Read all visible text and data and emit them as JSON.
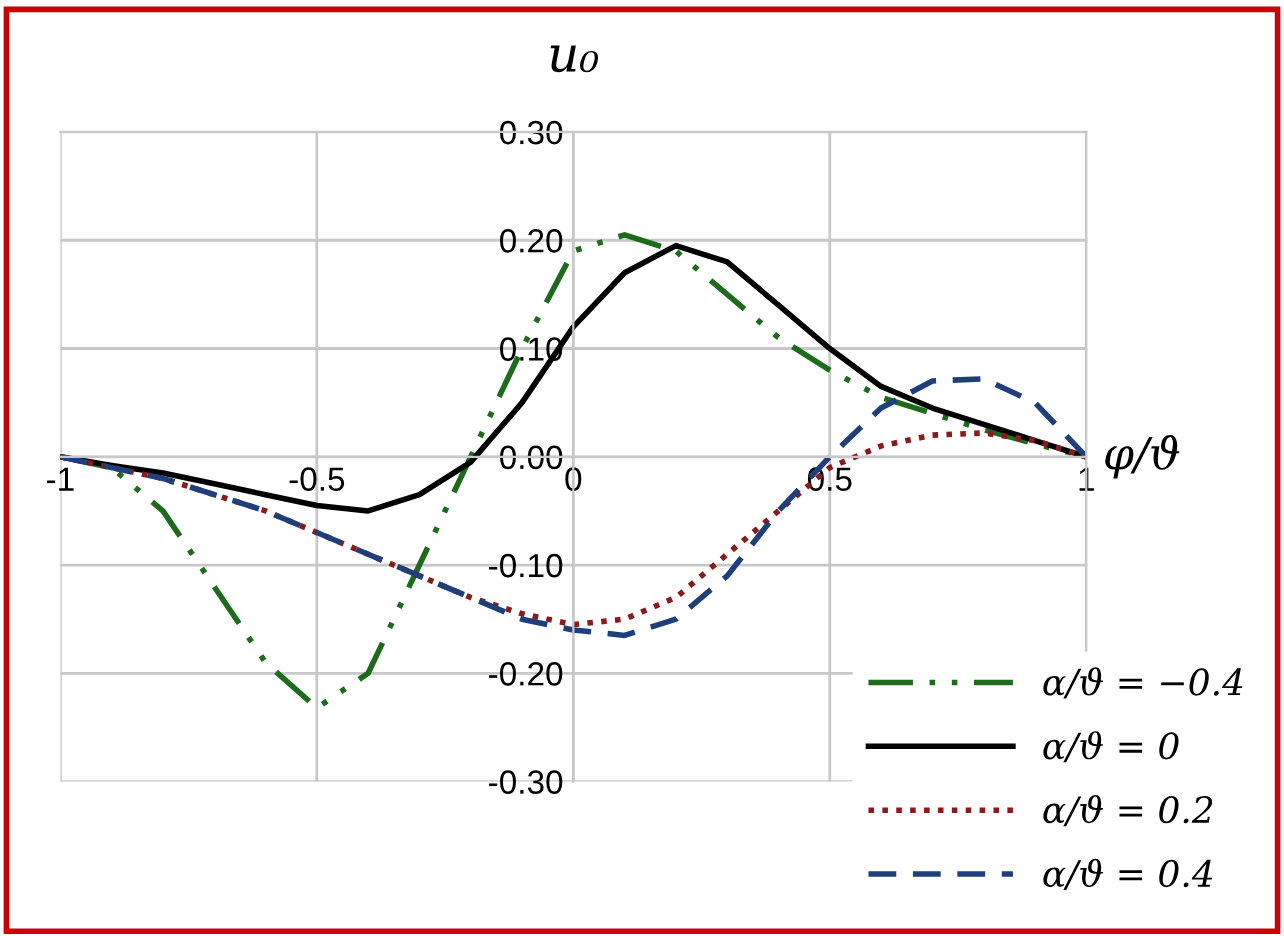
{
  "chart_data": {
    "type": "line",
    "xlabel": "φ/ϑ",
    "ylabel": "u₀",
    "x": [
      -1,
      -0.9,
      -0.8,
      -0.7,
      -0.6,
      -0.5,
      -0.4,
      -0.3,
      -0.2,
      -0.1,
      0,
      0.1,
      0.2,
      0.3,
      0.4,
      0.5,
      0.6,
      0.7,
      0.8,
      0.9,
      1
    ],
    "series": [
      {
        "name": "α/ϑ = −0.4",
        "color": "#1e6b1e",
        "line_style": "dashdot",
        "values": [
          0,
          -0.01,
          -0.05,
          -0.12,
          -0.19,
          -0.232,
          -0.2,
          -0.1,
          0.0,
          0.1,
          0.19,
          0.205,
          0.19,
          0.15,
          0.11,
          0.08,
          0.055,
          0.04,
          0.025,
          0.012,
          0
        ]
      },
      {
        "name": "α/ϑ = 0",
        "color": "#000000",
        "line_style": "solid",
        "values": [
          0,
          -0.008,
          -0.015,
          -0.025,
          -0.035,
          -0.045,
          -0.05,
          -0.035,
          -0.005,
          0.05,
          0.12,
          0.17,
          0.195,
          0.18,
          0.14,
          0.1,
          0.065,
          0.045,
          0.03,
          0.015,
          0
        ]
      },
      {
        "name": "α/ϑ = 0.2",
        "color": "#8b1a1a",
        "line_style": "dotted",
        "values": [
          0,
          -0.01,
          -0.02,
          -0.035,
          -0.05,
          -0.07,
          -0.09,
          -0.11,
          -0.13,
          -0.145,
          -0.155,
          -0.15,
          -0.13,
          -0.09,
          -0.05,
          -0.01,
          0.01,
          0.02,
          0.022,
          0.015,
          0
        ]
      },
      {
        "name": "α/ϑ = 0.4",
        "color": "#1f3f7a",
        "line_style": "dashed",
        "values": [
          0,
          -0.01,
          -0.02,
          -0.035,
          -0.05,
          -0.07,
          -0.09,
          -0.11,
          -0.13,
          -0.15,
          -0.16,
          -0.165,
          -0.15,
          -0.11,
          -0.05,
          0.0,
          0.045,
          0.07,
          0.072,
          0.05,
          0
        ]
      }
    ],
    "xlim": [
      -1,
      1
    ],
    "xticks": [
      -1,
      -0.5,
      0,
      0.5,
      1
    ],
    "ylim": [
      -0.3,
      0.3
    ],
    "yticks": [
      {
        "value": -0.3,
        "label": "-0.30"
      },
      {
        "value": -0.2,
        "label": "-0.20"
      },
      {
        "value": -0.1,
        "label": "-0.10"
      },
      {
        "value": 0,
        "label": "0.00"
      },
      {
        "value": 0.1,
        "label": "0.10"
      },
      {
        "value": 0.2,
        "label": "0.20"
      },
      {
        "value": 0.3,
        "label": "0.30"
      }
    ],
    "grid": true,
    "legend": "bottom right"
  }
}
